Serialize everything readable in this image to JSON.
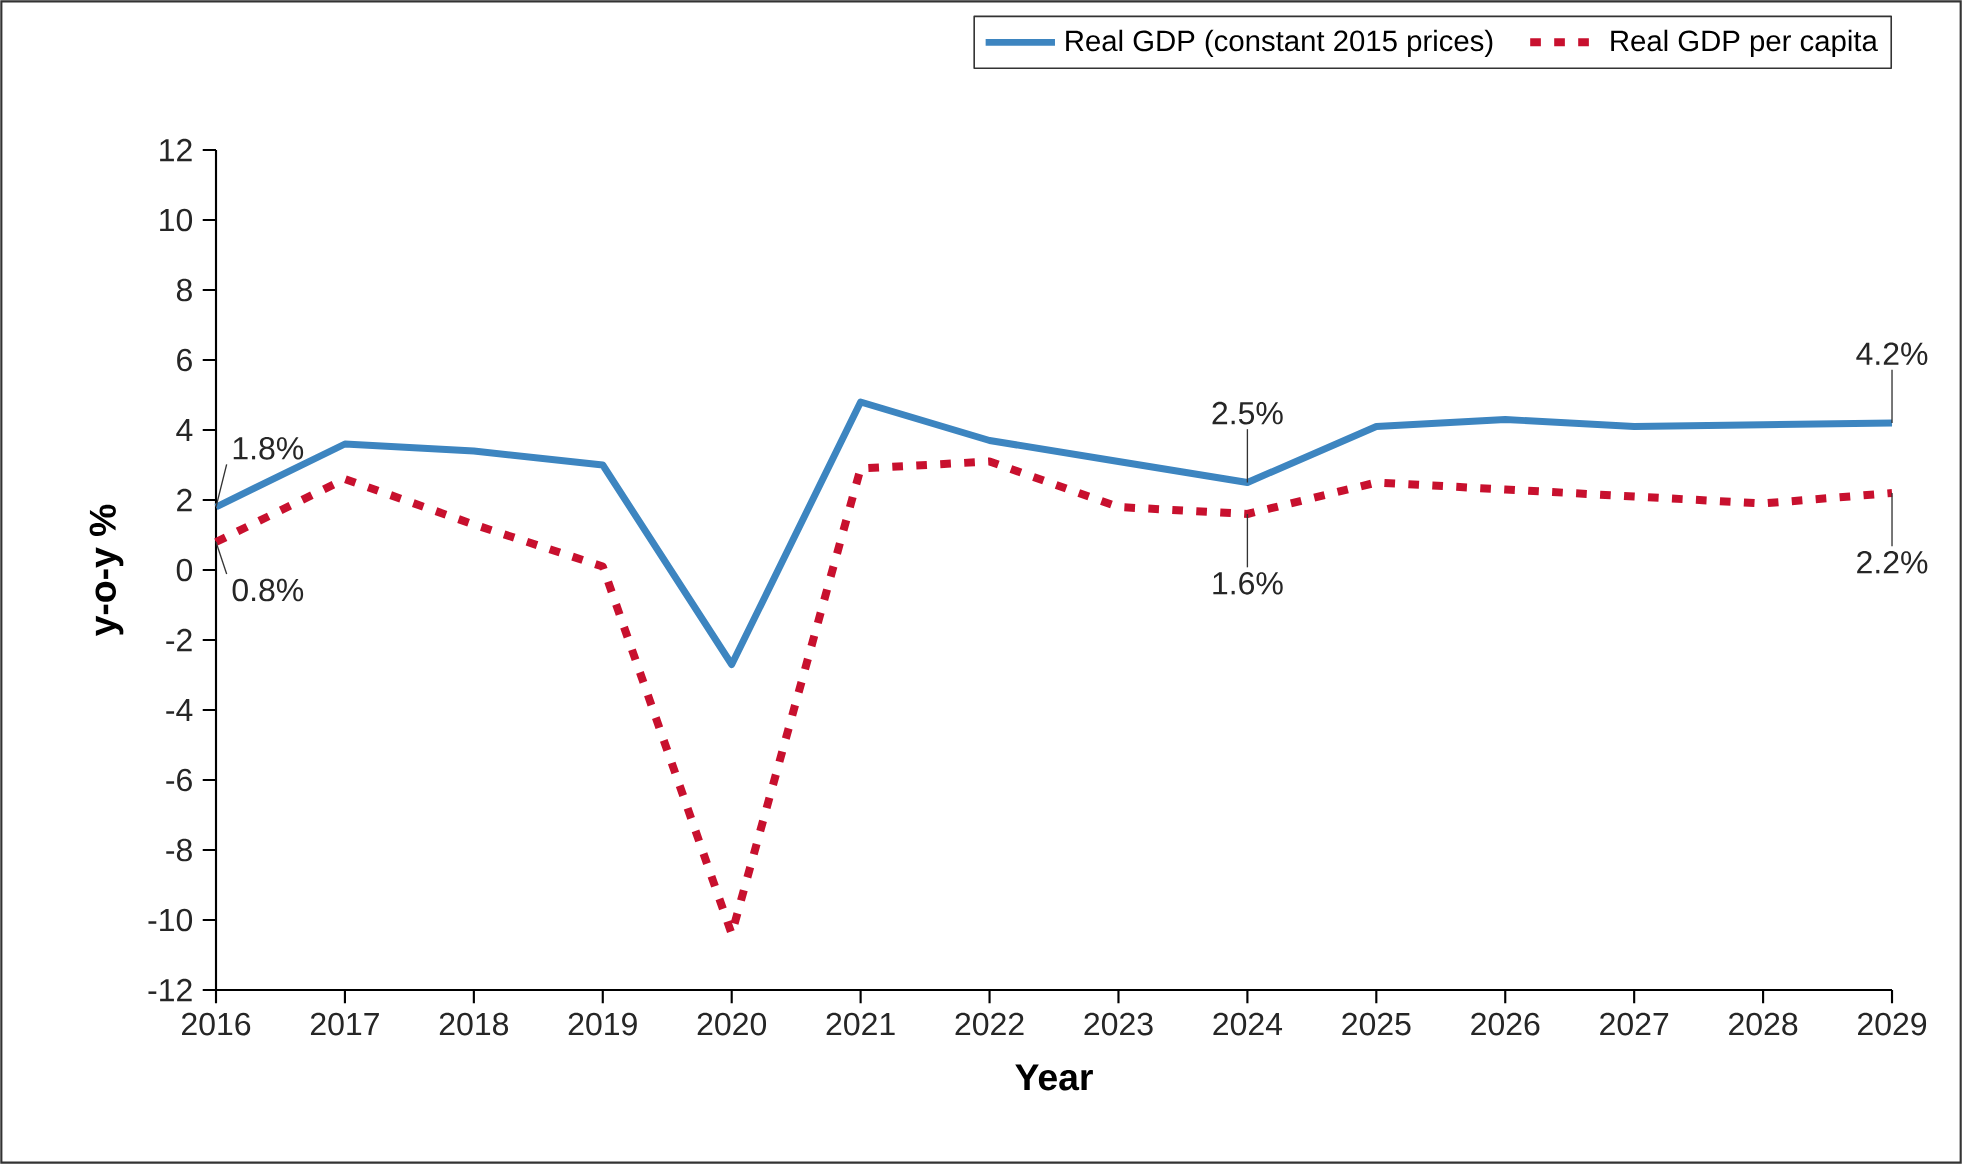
{
  "chart_data": {
    "type": "line",
    "xlabel": "Year",
    "ylabel": "y-o-y %",
    "x": [
      2016,
      2017,
      2018,
      2019,
      2020,
      2021,
      2022,
      2023,
      2024,
      2025,
      2026,
      2027,
      2028,
      2029
    ],
    "series": [
      {
        "name": "Real GDP (constant 2015 prices)",
        "color": "#3d85c0",
        "line_style": "solid",
        "values": [
          1.8,
          3.6,
          3.4,
          3.0,
          -2.7,
          4.8,
          3.7,
          3.1,
          2.5,
          4.1,
          4.3,
          4.1,
          4.15,
          4.2
        ]
      },
      {
        "name": "Real GDP per capita",
        "color": "#c8102e",
        "line_style": "dotted",
        "values": [
          0.8,
          2.6,
          1.3,
          0.1,
          -10.4,
          2.9,
          3.1,
          1.8,
          1.6,
          2.5,
          2.3,
          2.1,
          1.9,
          2.2
        ]
      }
    ],
    "xlim": [
      2016,
      2029
    ],
    "xticks": [
      2016,
      2017,
      2018,
      2019,
      2020,
      2021,
      2022,
      2023,
      2024,
      2025,
      2026,
      2027,
      2028,
      2029
    ],
    "ylim": [
      -12,
      12
    ],
    "yticks": [
      -12,
      -10,
      -8,
      -6,
      -4,
      -2,
      0,
      2,
      4,
      6,
      8,
      10,
      12
    ],
    "grid": false,
    "legend": "top right",
    "marker": "none",
    "annotations": [
      {
        "text": "1.8%",
        "x": 2016,
        "y": 1.8
      },
      {
        "text": "0.8%",
        "x": 2016,
        "y": 0.8
      },
      {
        "text": "2.5%",
        "x": 2024,
        "y": 2.5
      },
      {
        "text": "1.6%",
        "x": 2024,
        "y": 1.6
      },
      {
        "text": "4.2%",
        "x": 2029,
        "y": 4.2
      },
      {
        "text": "2.2%",
        "x": 2029,
        "y": 2.2
      }
    ]
  }
}
